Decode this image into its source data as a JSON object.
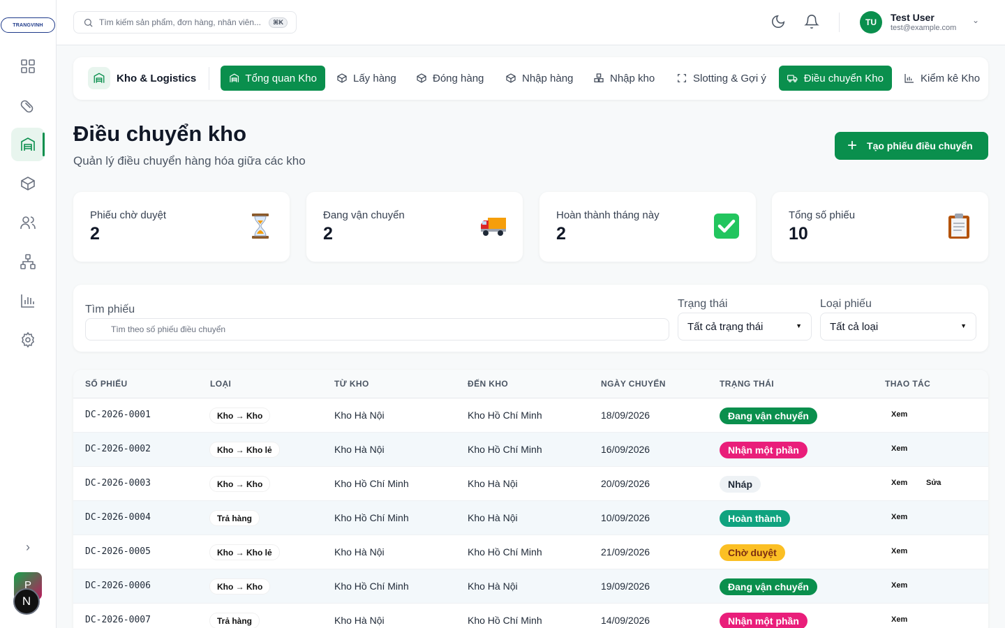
{
  "app": {
    "logo_text": "TRANGVINH",
    "user": {
      "initials": "TU",
      "name": "Test User",
      "email": "test@example.com"
    },
    "avatar_p": "P",
    "avatar_n": "N"
  },
  "search": {
    "placeholder": "Tìm kiếm sản phẩm, đơn hàng, nhân viên...",
    "shortcut": "⌘K"
  },
  "module": {
    "title": "Kho & Logistics",
    "tabs": [
      {
        "label": "Tổng quan Kho",
        "icon": "warehouse-icon",
        "active": true
      },
      {
        "label": "Lấy hàng",
        "icon": "box-icon",
        "active": false
      },
      {
        "label": "Đóng hàng",
        "icon": "box-icon",
        "active": false
      },
      {
        "label": "Nhập hàng",
        "icon": "box-icon",
        "active": false
      },
      {
        "label": "Nhập kho",
        "icon": "boxes-icon",
        "active": false
      },
      {
        "label": "Slotting & Gợi ý",
        "icon": "scan-icon",
        "active": false
      },
      {
        "label": "Điều chuyển Kho",
        "icon": "truck-icon",
        "active": true
      },
      {
        "label": "Kiểm kê Kho",
        "icon": "bar-chart-icon",
        "active": false
      }
    ]
  },
  "page": {
    "title": "Điều chuyển kho",
    "subtitle": "Quản lý điều chuyển hàng hóa giữa các kho",
    "create_button": "Tạo phiếu điều chuyển"
  },
  "stats": [
    {
      "label": "Phiếu chờ duyệt",
      "value": "2",
      "icon": "hourglass-icon"
    },
    {
      "label": "Đang vận chuyển",
      "value": "2",
      "icon": "truck-icon"
    },
    {
      "label": "Hoàn thành tháng này",
      "value": "2",
      "icon": "check-mark-icon"
    },
    {
      "label": "Tổng số phiếu",
      "value": "10",
      "icon": "clipboard-icon"
    }
  ],
  "filters": {
    "search_label": "Tìm phiếu",
    "search_placeholder": "Tìm theo số phiếu điều chuyển",
    "status_label": "Trạng thái",
    "status_value": "Tất cả trạng thái",
    "type_label": "Loại phiếu",
    "type_value": "Tất cả loại"
  },
  "table": {
    "headers": [
      "SỐ PHIẾU",
      "LOẠI",
      "TỪ KHO",
      "ĐẾN KHO",
      "NGÀY CHUYỂN",
      "TRẠNG THÁI",
      "THAO TÁC"
    ],
    "rows": [
      {
        "code": "DC-2026-0001",
        "type": "Kho → Kho",
        "from": "Kho Hà Nội",
        "to": "Kho Hồ Chí Minh",
        "date": "18/09/2026",
        "status": "Đang vận chuyển",
        "status_color": "#0a8f4d",
        "actions": [
          "Xem"
        ]
      },
      {
        "code": "DC-2026-0002",
        "type": "Kho → Kho lẻ",
        "from": "Kho Hà Nội",
        "to": "Kho Hồ Chí Minh",
        "date": "16/09/2026",
        "status": "Nhận một phần",
        "status_color": "#e91e7a",
        "actions": [
          "Xem"
        ]
      },
      {
        "code": "DC-2026-0003",
        "type": "Kho → Kho",
        "from": "Kho Hồ Chí Minh",
        "to": "Kho Hà Nội",
        "date": "20/09/2026",
        "status": "Nháp",
        "status_color": "#eef2f5",
        "actions": [
          "Xem",
          "Sửa"
        ]
      },
      {
        "code": "DC-2026-0004",
        "type": "Trả hàng",
        "from": "Kho Hồ Chí Minh",
        "to": "Kho Hà Nội",
        "date": "10/09/2026",
        "status": "Hoàn thành",
        "status_color": "#10a37f",
        "actions": [
          "Xem"
        ]
      },
      {
        "code": "DC-2026-0005",
        "type": "Kho → Kho lẻ",
        "from": "Kho Hà Nội",
        "to": "Kho Hồ Chí Minh",
        "date": "21/09/2026",
        "status": "Chờ duyệt",
        "status_color": "#fbbf24",
        "actions": [
          "Xem"
        ]
      },
      {
        "code": "DC-2026-0006",
        "type": "Kho → Kho",
        "from": "Kho Hồ Chí Minh",
        "to": "Kho Hà Nội",
        "date": "19/09/2026",
        "status": "Đang vận chuyển",
        "status_color": "#0a8f4d",
        "actions": [
          "Xem"
        ]
      },
      {
        "code": "DC-2026-0007",
        "type": "Trả hàng",
        "from": "Kho Hà Nội",
        "to": "Kho Hồ Chí Minh",
        "date": "14/09/2026",
        "status": "Nhận một phần",
        "status_color": "#e91e7a",
        "actions": [
          "Xem"
        ]
      }
    ]
  },
  "colors": {
    "primary": "#0a8f4d",
    "primary_soft": "#e8f5ee"
  }
}
